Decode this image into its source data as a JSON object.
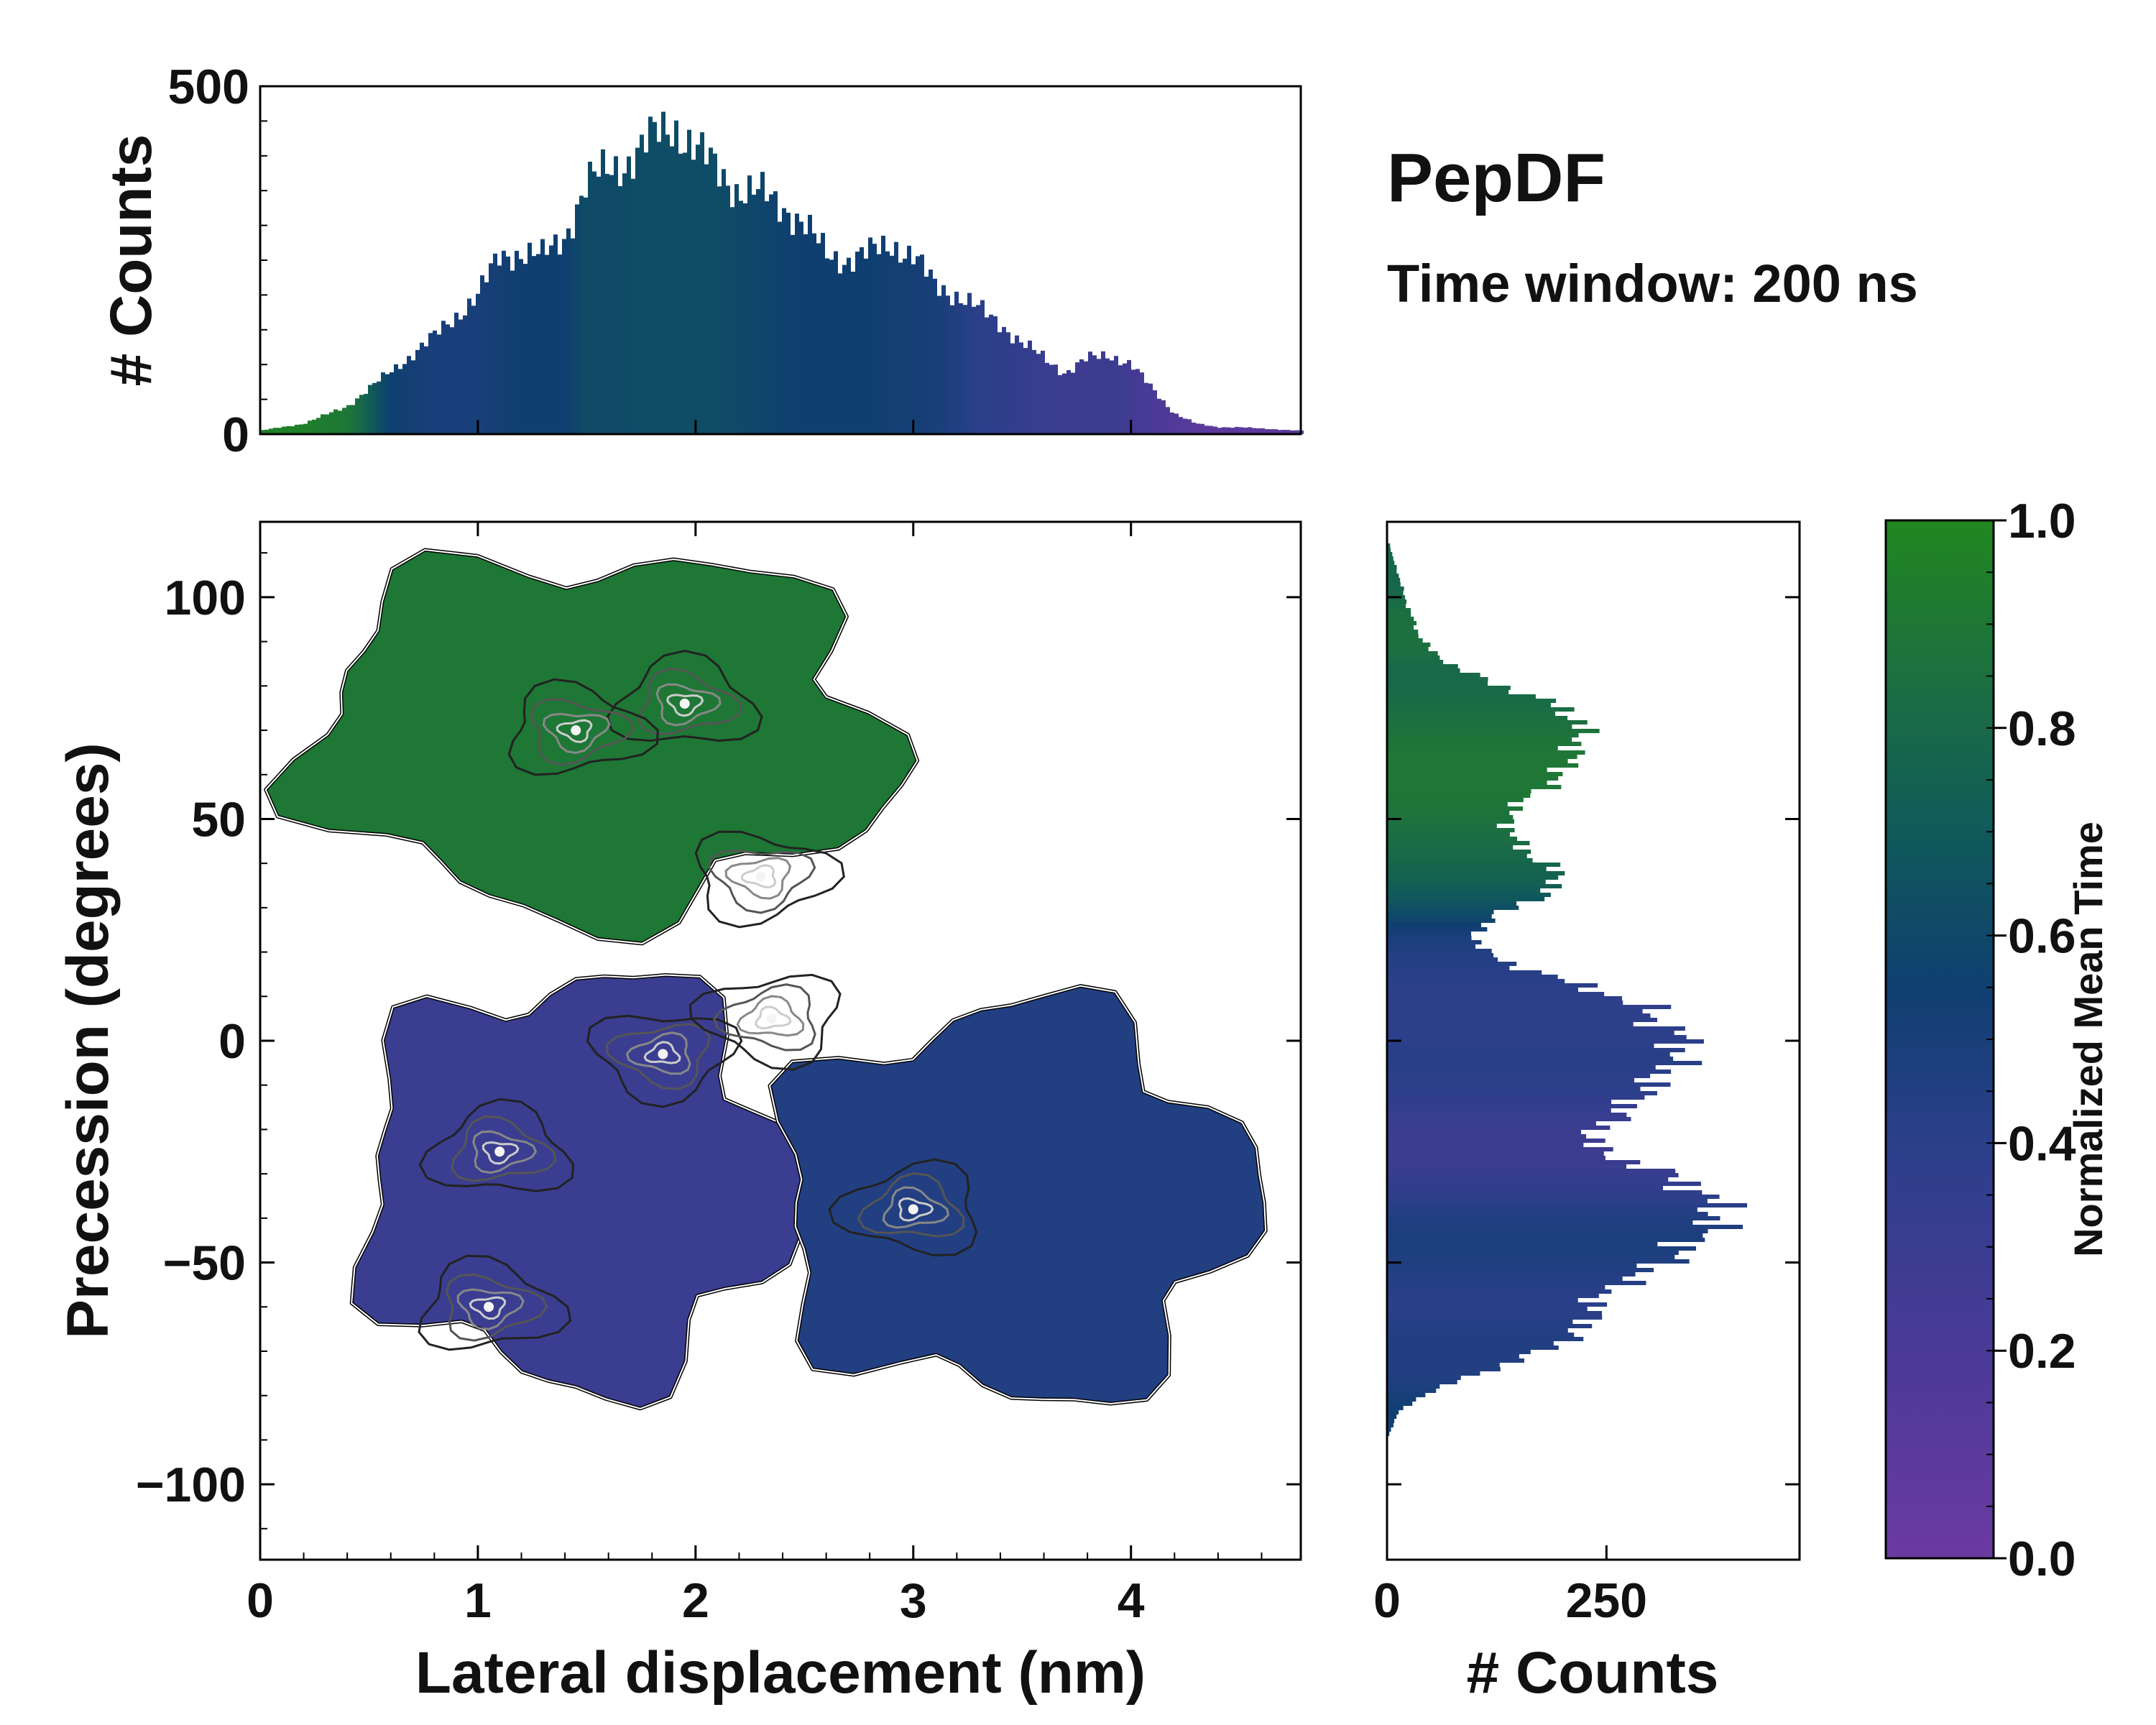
{
  "title": "PepDF",
  "subtitle": "Time window: 200 ns",
  "chart_data": [
    {
      "id": "main",
      "type": "heatmap",
      "xlabel": "Lateral displacement (nm)",
      "ylabel": "Precession (degrees)",
      "xlim": [
        0,
        4.78
      ],
      "ylim": [
        -117,
        117
      ],
      "xticks": [
        0,
        1,
        2,
        3,
        4
      ],
      "xtick_labels": [
        "0",
        "1",
        "2",
        "3",
        "4"
      ],
      "yticks": [
        -100,
        -50,
        0,
        50,
        100
      ],
      "ytick_labels": [
        "−100",
        "−50",
        "0",
        "50",
        "100"
      ],
      "color_by": "Normalized Mean Time",
      "regions": [
        {
          "name": "upper lobe",
          "x_range": [
            0,
            3.1
          ],
          "y_range": [
            22,
            116
          ],
          "mean_time": 0.9
        },
        {
          "name": "lower left lobe",
          "x_range": [
            0.3,
            2.6
          ],
          "y_range": [
            -85,
            22
          ],
          "mean_time": 0.3
        },
        {
          "name": "lower right lobe",
          "x_range": [
            2.2,
            4.7
          ],
          "y_range": [
            -88,
            15
          ],
          "mean_time": 0.45
        }
      ],
      "density_peaks": [
        {
          "x": 1.95,
          "y": 76
        },
        {
          "x": 1.45,
          "y": 70
        },
        {
          "x": 2.3,
          "y": 37
        },
        {
          "x": 1.85,
          "y": -3
        },
        {
          "x": 2.35,
          "y": 5
        },
        {
          "x": 3.0,
          "y": -38
        },
        {
          "x": 1.1,
          "y": -25
        },
        {
          "x": 1.05,
          "y": -60
        }
      ]
    },
    {
      "id": "top-histogram",
      "type": "bar",
      "xlabel": "",
      "ylabel": "# Counts",
      "xlim": [
        0,
        4.78
      ],
      "ylim": [
        0,
        500
      ],
      "yticks": [
        0,
        500
      ],
      "ytick_labels": [
        "0",
        "500"
      ],
      "x": [
        0.0,
        0.2,
        0.4,
        0.6,
        0.8,
        1.0,
        1.1,
        1.2,
        1.3,
        1.4,
        1.5,
        1.6,
        1.7,
        1.8,
        1.9,
        2.0,
        2.1,
        2.2,
        2.3,
        2.4,
        2.5,
        2.6,
        2.7,
        2.8,
        2.9,
        3.0,
        3.1,
        3.2,
        3.3,
        3.4,
        3.5,
        3.6,
        3.7,
        3.8,
        3.9,
        4.0,
        4.1,
        4.2,
        4.3,
        4.4,
        4.5,
        4.6,
        4.78
      ],
      "values": [
        5,
        15,
        40,
        90,
        140,
        200,
        255,
        262,
        255,
        285,
        360,
        380,
        395,
        425,
        445,
        410,
        380,
        350,
        345,
        330,
        300,
        260,
        250,
        260,
        275,
        255,
        215,
        200,
        180,
        160,
        130,
        110,
        88,
        108,
        115,
        100,
        65,
        30,
        15,
        10,
        10,
        8,
        5
      ],
      "mean_time": [
        0.95,
        0.95,
        0.9,
        0.55,
        0.5,
        0.5,
        0.52,
        0.55,
        0.55,
        0.55,
        0.62,
        0.6,
        0.62,
        0.62,
        0.62,
        0.62,
        0.62,
        0.6,
        0.58,
        0.56,
        0.55,
        0.55,
        0.55,
        0.55,
        0.53,
        0.52,
        0.5,
        0.45,
        0.4,
        0.38,
        0.35,
        0.3,
        0.3,
        0.28,
        0.3,
        0.25,
        0.2,
        0.15,
        0.1,
        0.1,
        0.1,
        0.1,
        0.1
      ]
    },
    {
      "id": "right-histogram",
      "type": "bar",
      "orientation": "horizontal",
      "xlabel": "# Counts",
      "ylabel": "",
      "xlim": [
        0,
        470
      ],
      "ylim": [
        -117,
        117
      ],
      "xticks": [
        0,
        250
      ],
      "xtick_labels": [
        "0",
        "250"
      ],
      "y": [
        -90,
        -84,
        -80,
        -76,
        -72,
        -68,
        -64,
        -60,
        -56,
        -52,
        -48,
        -44,
        -40,
        -36,
        -32,
        -28,
        -24,
        -20,
        -16,
        -12,
        -8,
        -4,
        0,
        4,
        8,
        12,
        16,
        20,
        24,
        28,
        32,
        36,
        40,
        44,
        48,
        52,
        56,
        60,
        64,
        68,
        72,
        76,
        80,
        84,
        88,
        92,
        96,
        100,
        104,
        108,
        112
      ],
      "values": [
        0,
        12,
        40,
        90,
        150,
        200,
        230,
        235,
        250,
        300,
        330,
        360,
        378,
        372,
        340,
        290,
        230,
        240,
        270,
        290,
        310,
        330,
        340,
        310,
        290,
        230,
        160,
        110,
        100,
        120,
        170,
        200,
        180,
        150,
        140,
        140,
        170,
        200,
        210,
        220,
        220,
        190,
        130,
        80,
        50,
        35,
        28,
        20,
        15,
        8,
        3
      ],
      "mean_time": [
        0.5,
        0.55,
        0.5,
        0.45,
        0.45,
        0.45,
        0.43,
        0.4,
        0.42,
        0.45,
        0.47,
        0.48,
        0.45,
        0.4,
        0.35,
        0.3,
        0.28,
        0.3,
        0.33,
        0.38,
        0.4,
        0.42,
        0.4,
        0.38,
        0.38,
        0.4,
        0.42,
        0.45,
        0.5,
        0.6,
        0.68,
        0.75,
        0.78,
        0.82,
        0.85,
        0.88,
        0.9,
        0.9,
        0.9,
        0.88,
        0.85,
        0.82,
        0.8,
        0.8,
        0.85,
        0.85,
        0.85,
        0.8,
        0.78,
        0.78,
        0.8
      ]
    },
    {
      "id": "colorbar",
      "type": "colorbar",
      "label": "Normalized Mean Time",
      "range": [
        0.0,
        1.0
      ],
      "ticks": [
        0.0,
        0.2,
        0.4,
        0.6,
        0.8,
        1.0
      ],
      "tick_labels": [
        "0.0",
        "0.2",
        "0.4",
        "0.6",
        "0.8",
        "1.0"
      ],
      "colors": [
        "#6b3aa0",
        "#3a3f8f",
        "#1f3f7a",
        "#0f4a6a",
        "#1c6a4a",
        "#21861f"
      ]
    }
  ]
}
